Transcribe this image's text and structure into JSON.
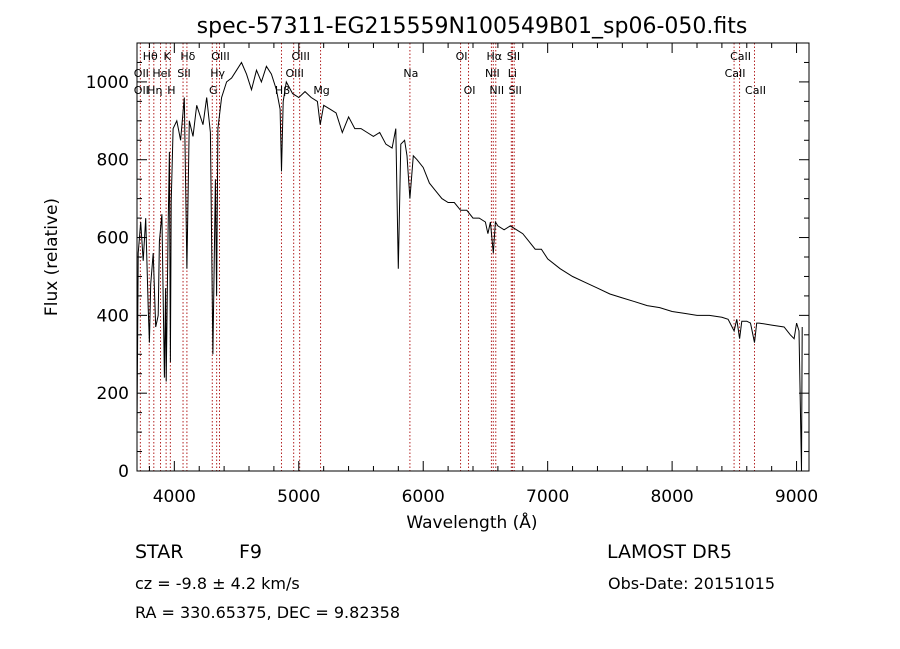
{
  "chart_data": {
    "type": "line",
    "title": "spec-57311-EG215559N100549B01_sp06-050.fits",
    "xlabel": "Wavelength (Å)",
    "ylabel": "Flux (relative)",
    "xlim": [
      3700,
      9100
    ],
    "ylim": [
      0,
      1100
    ],
    "x_ticks": [
      4000,
      5000,
      6000,
      7000,
      8000,
      9000
    ],
    "x_tick_labels": [
      "4000",
      "5000",
      "6000",
      "7000",
      "8000",
      "9000"
    ],
    "y_ticks": [
      0,
      200,
      400,
      600,
      800,
      1000
    ],
    "y_tick_labels": [
      "0",
      "200",
      "400",
      "600",
      "800",
      "1000"
    ],
    "grid": false,
    "line_color": "#000000",
    "marker_color": "#b22222",
    "series": [
      {
        "x": [
          3700,
          3710,
          3730,
          3750,
          3770,
          3790,
          3800,
          3810,
          3830,
          3850,
          3870,
          3880,
          3900,
          3920,
          3930,
          3935,
          3950,
          3960,
          3968,
          3975,
          3990,
          4020,
          4050,
          4080,
          4101,
          4120,
          4150,
          4180,
          4200,
          4230,
          4260,
          4290,
          4310,
          4330,
          4340,
          4350,
          4380,
          4420,
          4460,
          4500,
          4540,
          4580,
          4620,
          4660,
          4700,
          4740,
          4780,
          4820,
          4850,
          4861,
          4875,
          4900,
          4950,
          5000,
          5050,
          5100,
          5150,
          5172,
          5200,
          5250,
          5300,
          5350,
          5400,
          5450,
          5500,
          5550,
          5600,
          5650,
          5700,
          5750,
          5780,
          5800,
          5820,
          5850,
          5870,
          5893,
          5920,
          5950,
          6000,
          6050,
          6100,
          6150,
          6200,
          6250,
          6300,
          6350,
          6400,
          6450,
          6500,
          6520,
          6540,
          6563,
          6580,
          6600,
          6650,
          6700,
          6750,
          6800,
          6850,
          6900,
          6950,
          7000,
          7100,
          7200,
          7300,
          7400,
          7500,
          7600,
          7700,
          7800,
          7900,
          8000,
          8100,
          8200,
          8300,
          8400,
          8450,
          8498,
          8520,
          8542,
          8560,
          8600,
          8630,
          8662,
          8680,
          8700,
          8800,
          8900,
          8950,
          8980,
          9000,
          9020,
          9040,
          9045
        ],
        "y": [
          100,
          560,
          640,
          540,
          650,
          420,
          330,
          480,
          560,
          370,
          400,
          590,
          660,
          240,
          470,
          230,
          620,
          820,
          280,
          690,
          880,
          900,
          850,
          960,
          520,
          900,
          860,
          940,
          920,
          890,
          960,
          870,
          300,
          750,
          450,
          880,
          960,
          1000,
          1010,
          1030,
          1050,
          1020,
          980,
          1030,
          1000,
          1040,
          1020,
          980,
          930,
          770,
          950,
          1000,
          970,
          960,
          975,
          960,
          950,
          890,
          940,
          930,
          920,
          870,
          910,
          880,
          880,
          870,
          860,
          870,
          840,
          830,
          880,
          520,
          840,
          850,
          810,
          700,
          810,
          800,
          780,
          740,
          720,
          700,
          690,
          690,
          670,
          670,
          650,
          650,
          640,
          610,
          640,
          560,
          640,
          630,
          620,
          630,
          620,
          610,
          590,
          570,
          570,
          545,
          520,
          500,
          485,
          470,
          455,
          445,
          435,
          425,
          420,
          410,
          405,
          400,
          400,
          395,
          390,
          360,
          390,
          340,
          385,
          385,
          380,
          330,
          380,
          380,
          375,
          370,
          350,
          340,
          380,
          360,
          0,
          370
        ]
      }
    ],
    "line_markers": [
      {
        "label": "Hθ",
        "x": 3798,
        "row": 1
      },
      {
        "label": "OII",
        "x": 3727,
        "row": 2
      },
      {
        "label": "OII",
        "x": 3727,
        "row": 3
      },
      {
        "label": "Hη",
        "x": 3835,
        "row": 3
      },
      {
        "label": "HeI",
        "x": 3889,
        "row": 2
      },
      {
        "label": "K",
        "x": 3934,
        "row": 1
      },
      {
        "label": "H",
        "x": 3968,
        "row": 3
      },
      {
        "label": "Hδ",
        "x": 4101,
        "row": 1
      },
      {
        "label": "SII",
        "x": 4070,
        "row": 2
      },
      {
        "label": "OIII",
        "x": 4363,
        "row": 1
      },
      {
        "label": "Hγ",
        "x": 4340,
        "row": 2
      },
      {
        "label": "G",
        "x": 4305,
        "row": 3
      },
      {
        "label": "OIII",
        "x": 5007,
        "row": 1
      },
      {
        "label": "OIII",
        "x": 4959,
        "row": 2
      },
      {
        "label": "Hβ",
        "x": 4861,
        "row": 3
      },
      {
        "label": "Mg",
        "x": 5175,
        "row": 3
      },
      {
        "label": "Na",
        "x": 5893,
        "row": 2
      },
      {
        "label": "OI",
        "x": 6300,
        "row": 1
      },
      {
        "label": "OI",
        "x": 6364,
        "row": 3
      },
      {
        "label": "Hα",
        "x": 6563,
        "row": 1
      },
      {
        "label": "NII",
        "x": 6548,
        "row": 2
      },
      {
        "label": "NII",
        "x": 6583,
        "row": 3
      },
      {
        "label": "SII",
        "x": 6717,
        "row": 1
      },
      {
        "label": "Li",
        "x": 6708,
        "row": 2
      },
      {
        "label": "SII",
        "x": 6731,
        "row": 3
      },
      {
        "label": "CaII",
        "x": 8542,
        "row": 1
      },
      {
        "label": "CaII",
        "x": 8498,
        "row": 2
      },
      {
        "label": "CaII",
        "x": 8662,
        "row": 3
      }
    ]
  },
  "info": {
    "object_class": "STAR",
    "subclass": "F9",
    "survey": "LAMOST DR5",
    "velocity": "cz = -9.8 ± 4.2 km/s",
    "obs_date": "Obs-Date: 20151015",
    "coords": "RA = 330.65375, DEC =   9.82358"
  }
}
